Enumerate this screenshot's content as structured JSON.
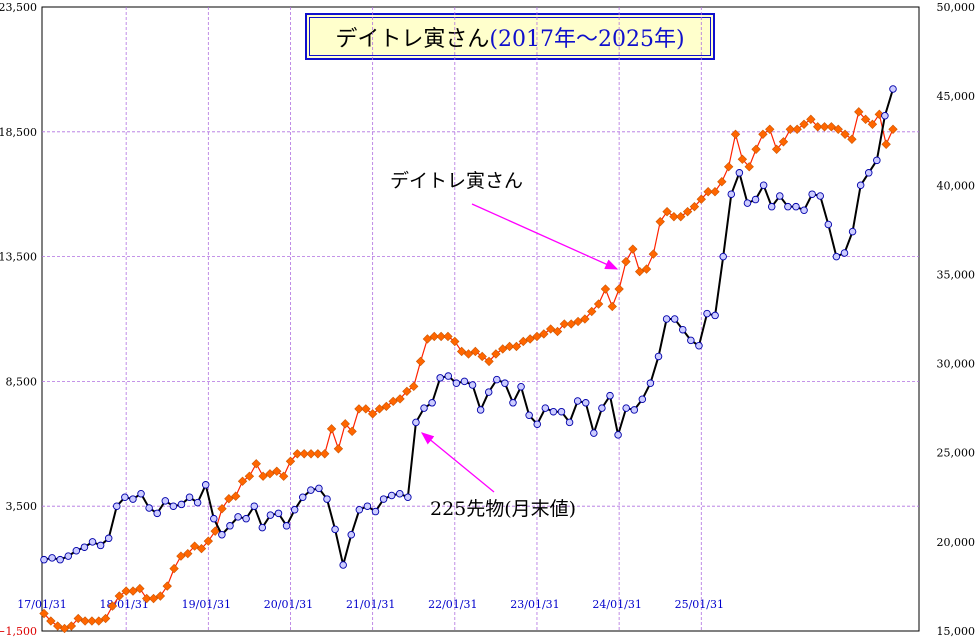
{
  "title": {
    "name": "デイトレ寅さん",
    "range": "(2017年〜2025年)"
  },
  "chart_data": {
    "type": "line",
    "left_axis": {
      "min": -1500,
      "max": 23500,
      "ticks": [
        -1500,
        3500,
        8500,
        13500,
        18500,
        23500
      ],
      "tick_labels": [
        "−1,500",
        "3,500",
        "8,500",
        "13,500",
        "18,500",
        "23,500"
      ]
    },
    "right_axis": {
      "min": 15000,
      "max": 50000,
      "ticks": [
        15000,
        20000,
        25000,
        30000,
        35000,
        40000,
        45000,
        50000
      ],
      "tick_labels": [
        "15,000",
        "20,000",
        "25,000",
        "30,000",
        "35,000",
        "40,000",
        "45,000",
        "50,000"
      ]
    },
    "x_tick_labels": [
      "17/01/31",
      "18/01/31",
      "19/01/31",
      "20/01/31",
      "21/01/31",
      "22/01/31",
      "23/01/31",
      "24/01/31",
      "25/01/31"
    ],
    "grid": true,
    "annotations": [
      {
        "text": "デイトレ寅さん",
        "points_to": "series-0"
      },
      {
        "text": "225先物(月末値)",
        "points_to": "series-1"
      }
    ],
    "series": [
      {
        "name": "デイトレ寅さん",
        "axis": "left",
        "color": "#ff6600",
        "line_color": "#ff2200",
        "values": [
          -800,
          -1100,
          -1300,
          -1400,
          -1300,
          -1000,
          -1100,
          -1100,
          -1100,
          -1000,
          -500,
          -100,
          100,
          100,
          200,
          -200,
          -200,
          -100,
          300,
          1000,
          1500,
          1600,
          1900,
          1800,
          2100,
          2500,
          3400,
          3800,
          3900,
          4500,
          4700,
          5200,
          4700,
          4800,
          4900,
          4700,
          5300,
          5600,
          5600,
          5600,
          5600,
          5600,
          6600,
          5800,
          6800,
          6500,
          7400,
          7400,
          7200,
          7400,
          7500,
          7700,
          7800,
          8100,
          8300,
          9300,
          10200,
          10300,
          10300,
          10300,
          10100,
          9700,
          9600,
          9700,
          9500,
          9300,
          9600,
          9800,
          9900,
          9900,
          10100,
          10200,
          10300,
          10400,
          10600,
          10500,
          10800,
          10800,
          10900,
          11000,
          11300,
          11600,
          12200,
          11500,
          12200,
          13300,
          13800,
          12900,
          13000,
          13600,
          14900,
          15300,
          15100,
          15100,
          15300,
          15500,
          15800,
          16100,
          16100,
          16500,
          17100,
          18400,
          17400,
          17100,
          17800,
          18400,
          18600,
          17800,
          18100,
          18600,
          18600,
          18800,
          19000,
          18700,
          18700,
          18700,
          18600,
          18400,
          18200,
          19300,
          19000,
          18800,
          19200,
          18000,
          18600
        ],
        "label_at_index": 0
      },
      {
        "name": "225先物(月末値)",
        "axis": "right",
        "color": "#000000",
        "marker_fill": "#ccccff",
        "marker_stroke": "#0000aa",
        "values": [
          19000,
          19100,
          19000,
          19200,
          19500,
          19700,
          20000,
          19800,
          20200,
          22000,
          22500,
          22400,
          22700,
          21900,
          21600,
          22300,
          22000,
          22100,
          22500,
          22200,
          23200,
          21300,
          20400,
          20900,
          21400,
          21300,
          22000,
          20800,
          21500,
          21600,
          20900,
          21800,
          22500,
          22900,
          23000,
          22400,
          20700,
          18700,
          20400,
          21800,
          22000,
          21700,
          22400,
          22600,
          22700,
          22500,
          26700,
          27500,
          27800,
          29200,
          29300,
          28900,
          29000,
          28800,
          27400,
          28400,
          29100,
          28900,
          27800,
          28700,
          27100,
          26600,
          27500,
          27300,
          27300,
          26700,
          27900,
          27800,
          26100,
          27500,
          28200,
          26000,
          27500,
          27400,
          28000,
          28900,
          30400,
          32500,
          32500,
          31900,
          31300,
          31000,
          32800,
          32700,
          36000,
          39500,
          40700,
          39000,
          39200,
          40000,
          38800,
          39400,
          38800,
          38800,
          38600,
          39500,
          39400,
          37800,
          36000,
          36200,
          37400,
          40000,
          40700,
          41400,
          43900,
          45400
        ]
      }
    ]
  }
}
